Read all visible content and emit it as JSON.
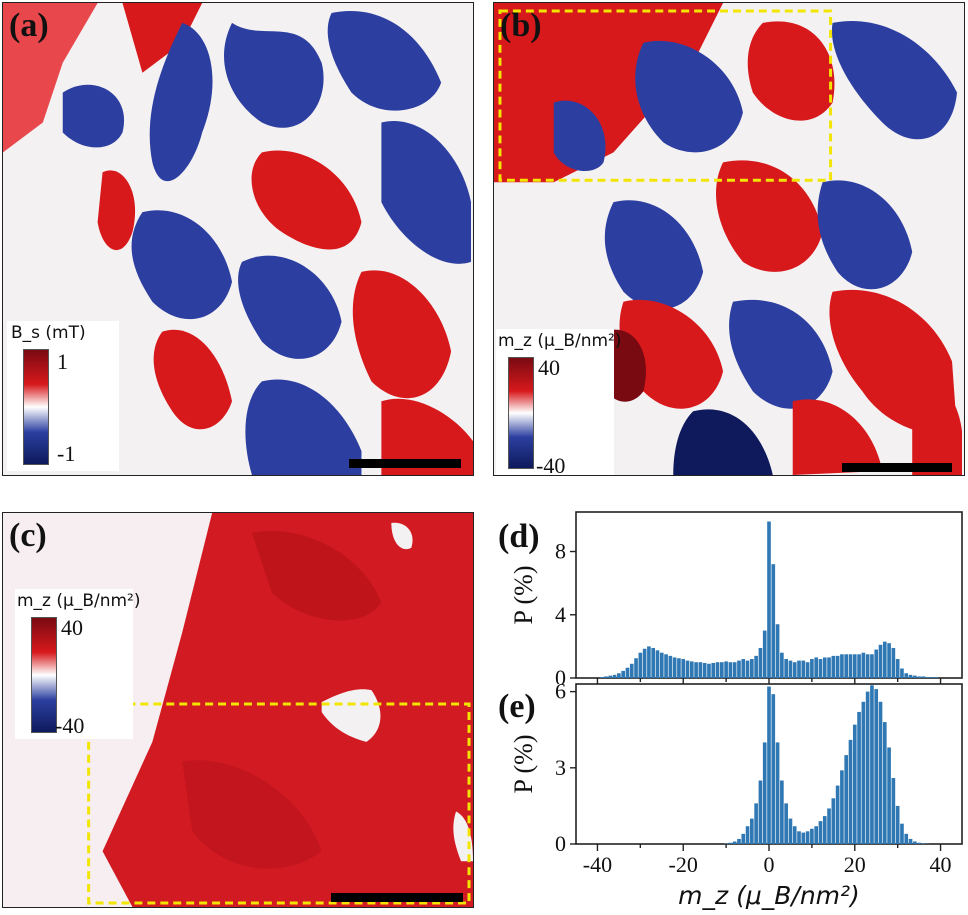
{
  "panels": {
    "a": {
      "label": "(a)",
      "cbar_title": "B_s (mT)",
      "cbar_max": "1",
      "cbar_min": "-1"
    },
    "b": {
      "label": "(b)",
      "cbar_title": "m_z (μ_B/nm²)",
      "cbar_max": "40",
      "cbar_min": "-40"
    },
    "c": {
      "label": "(c)",
      "cbar_title": "m_z (μ_B/nm²)",
      "cbar_max": "40",
      "cbar_min": "-40"
    },
    "d": {
      "label": "(d)"
    },
    "e": {
      "label": "(e)"
    }
  },
  "colors": {
    "positive": "#d7191c",
    "negative": "#2c3fa0",
    "neutral": "#ffffff",
    "bar": "#2f78b4",
    "dashed_box": "#f2e600"
  },
  "chart_data": [
    {
      "type": "bar",
      "panel": "(d)",
      "xlabel": "",
      "ylabel": "P (%)",
      "ylim": [
        0,
        10.5
      ],
      "yticks": [
        0,
        4,
        8
      ],
      "xlim": [
        -45,
        45
      ],
      "x": [
        -39,
        -38,
        -37,
        -36,
        -35,
        -34,
        -33,
        -32,
        -31,
        -30,
        -29,
        -28,
        -27,
        -26,
        -25,
        -24,
        -23,
        -22,
        -21,
        -20,
        -19,
        -18,
        -17,
        -16,
        -15,
        -14,
        -13,
        -12,
        -11,
        -10,
        -9,
        -8,
        -7,
        -6,
        -5,
        -4,
        -3,
        -2,
        -1,
        0,
        1,
        2,
        3,
        4,
        5,
        6,
        7,
        8,
        9,
        10,
        11,
        12,
        13,
        14,
        15,
        16,
        17,
        18,
        19,
        20,
        21,
        22,
        23,
        24,
        25,
        26,
        27,
        28,
        29,
        30,
        31,
        32,
        33,
        34,
        35,
        36,
        37,
        38,
        39
      ],
      "values": [
        0.05,
        0.1,
        0.15,
        0.2,
        0.3,
        0.45,
        0.65,
        0.9,
        1.25,
        1.6,
        1.85,
        2.0,
        1.9,
        1.75,
        1.6,
        1.5,
        1.4,
        1.3,
        1.25,
        1.2,
        1.1,
        1.05,
        1.0,
        1.0,
        0.95,
        0.9,
        0.95,
        1.0,
        1.0,
        1.05,
        1.0,
        1.0,
        1.1,
        1.2,
        1.1,
        1.2,
        1.4,
        1.9,
        3.0,
        9.9,
        7.2,
        3.4,
        1.6,
        1.2,
        1.1,
        1.0,
        1.1,
        1.1,
        1.0,
        1.2,
        1.3,
        1.2,
        1.3,
        1.3,
        1.4,
        1.4,
        1.5,
        1.5,
        1.5,
        1.5,
        1.5,
        1.6,
        1.5,
        1.5,
        1.8,
        2.1,
        2.3,
        2.2,
        1.9,
        1.2,
        0.6,
        0.3,
        0.2,
        0.15,
        0.1,
        0.1,
        0.05,
        0.05,
        0.05
      ]
    },
    {
      "type": "bar",
      "panel": "(e)",
      "xlabel": "m_z (μ_B/nm²)",
      "ylabel": "P (%)",
      "ylim": [
        0,
        6.3
      ],
      "yticks": [
        0,
        3,
        6
      ],
      "xlim": [
        -45,
        45
      ],
      "xticks": [
        -40,
        -20,
        0,
        20,
        40
      ],
      "x": [
        -10,
        -9,
        -8,
        -7,
        -6,
        -5,
        -4,
        -3,
        -2,
        -1,
        0,
        1,
        2,
        3,
        4,
        5,
        6,
        7,
        8,
        9,
        10,
        11,
        12,
        13,
        14,
        15,
        16,
        17,
        18,
        19,
        20,
        21,
        22,
        23,
        24,
        25,
        26,
        27,
        28,
        29,
        30,
        31,
        32,
        33,
        34,
        35,
        36,
        37
      ],
      "values": [
        0.02,
        0.05,
        0.1,
        0.2,
        0.4,
        0.7,
        1.0,
        1.6,
        2.5,
        4.0,
        6.2,
        5.9,
        4.0,
        2.5,
        1.6,
        1.0,
        0.7,
        0.5,
        0.45,
        0.5,
        0.6,
        0.7,
        0.9,
        1.1,
        1.4,
        1.8,
        2.3,
        2.9,
        3.5,
        4.1,
        4.7,
        5.2,
        5.6,
        6.0,
        6.25,
        6.1,
        5.6,
        4.8,
        3.8,
        2.6,
        1.5,
        0.8,
        0.4,
        0.2,
        0.1,
        0.05,
        0.02,
        0.01
      ]
    }
  ]
}
